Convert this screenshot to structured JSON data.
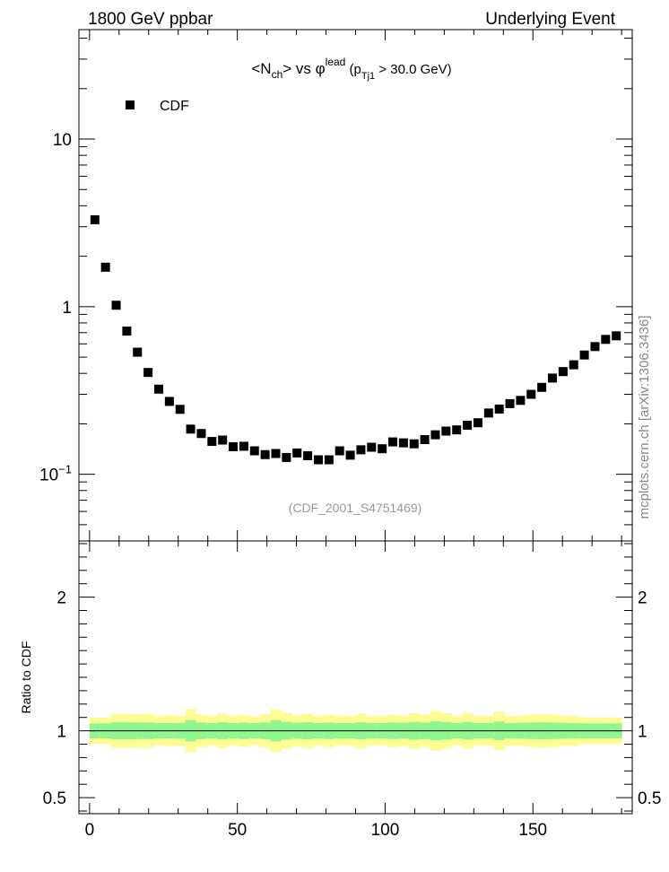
{
  "header": {
    "left": "1800 GeV ppbar",
    "right": "Underlying Event"
  },
  "title": {
    "lt": "<N",
    "sub_ch": "ch",
    "gt": "> vs φ",
    "sup_lead": "lead",
    "paren_open": " (p",
    "sub_tj1": "Tj1",
    "tail": " > 30.0 GeV)"
  },
  "legend": {
    "label": "CDF"
  },
  "analysis_label": "(CDF_2001_S4751469)",
  "side_label": "mcplots.cern.ch [arXiv:1306.3436]",
  "ratio_ylabel": "Ratio to CDF",
  "colors": {
    "band_inner": "#90f690",
    "band_outer": "#fdfd94",
    "marker": "#000000",
    "axis": "#000000"
  },
  "chart_data": [
    {
      "type": "scatter",
      "yscale": "log",
      "xlim": [
        -3.6,
        183.6
      ],
      "ylim": [
        0.04,
        45
      ],
      "y_tick_labels": [
        "10^-1",
        "1",
        "10"
      ],
      "series": [
        {
          "name": "CDF",
          "x": [
            1.8,
            5.4,
            9.0,
            12.6,
            16.2,
            19.8,
            23.4,
            27.0,
            30.6,
            34.2,
            37.8,
            41.4,
            45.0,
            48.6,
            52.2,
            55.8,
            59.4,
            63.0,
            66.6,
            70.2,
            73.8,
            77.4,
            81.0,
            84.6,
            88.2,
            91.8,
            95.4,
            99.0,
            102.6,
            106.2,
            109.8,
            113.4,
            117.0,
            120.6,
            124.2,
            127.8,
            131.4,
            135.0,
            138.6,
            142.2,
            145.8,
            149.4,
            153.0,
            156.6,
            160.2,
            163.8,
            167.4,
            171.0,
            174.6,
            178.2
          ],
          "y": [
            3.3,
            1.72,
            1.02,
            0.715,
            0.535,
            0.405,
            0.322,
            0.272,
            0.244,
            0.186,
            0.175,
            0.157,
            0.16,
            0.146,
            0.147,
            0.138,
            0.131,
            0.133,
            0.126,
            0.134,
            0.129,
            0.122,
            0.122,
            0.138,
            0.13,
            0.14,
            0.145,
            0.142,
            0.156,
            0.154,
            0.152,
            0.161,
            0.172,
            0.181,
            0.184,
            0.196,
            0.203,
            0.232,
            0.245,
            0.264,
            0.276,
            0.3,
            0.33,
            0.375,
            0.41,
            0.45,
            0.515,
            0.578,
            0.638,
            0.67
          ]
        }
      ]
    },
    {
      "type": "area",
      "ylabel": "Ratio to CDF",
      "xlim": [
        -3.6,
        183.6
      ],
      "ylim": [
        0.38,
        2.42
      ],
      "x_tick_labels": [
        "0",
        "50",
        "100",
        "150"
      ],
      "y_tick_labels": [
        "0.5",
        "1",
        "2"
      ],
      "bin_edges": [
        0.0,
        3.6,
        7.2,
        10.8,
        14.4,
        18.0,
        21.6,
        25.2,
        28.8,
        32.4,
        36.0,
        39.6,
        43.2,
        46.8,
        50.4,
        54.0,
        57.6,
        61.2,
        64.8,
        68.4,
        72.0,
        75.6,
        79.2,
        82.8,
        86.4,
        90.0,
        93.6,
        97.2,
        100.8,
        104.4,
        108.0,
        111.6,
        115.2,
        118.8,
        122.4,
        126.0,
        129.6,
        133.2,
        136.8,
        140.4,
        144.0,
        147.6,
        151.2,
        154.8,
        158.4,
        162.0,
        165.6,
        169.2,
        172.8,
        176.4,
        180.0
      ],
      "series": [
        {
          "values": [
            1.0,
            1.0,
            1.0,
            1.0,
            1.0,
            1.0,
            1.0,
            1.0,
            1.0,
            1.0,
            1.0,
            1.0,
            1.0,
            1.0,
            1.0,
            1.0,
            1.0,
            1.0,
            1.0,
            1.0,
            1.0,
            1.0,
            1.0,
            1.0,
            1.0,
            1.0,
            1.0,
            1.0,
            1.0,
            1.0,
            1.0,
            1.0,
            1.0,
            1.0,
            1.0,
            1.0,
            1.0,
            1.0,
            1.0,
            1.0,
            1.0,
            1.0,
            1.0,
            1.0,
            1.0,
            1.0,
            1.0,
            1.0,
            1.0,
            1.0
          ],
          "inner_half_width": [
            0.056,
            0.056,
            0.064,
            0.064,
            0.062,
            0.062,
            0.058,
            0.058,
            0.06,
            0.08,
            0.062,
            0.058,
            0.064,
            0.058,
            0.062,
            0.058,
            0.062,
            0.08,
            0.066,
            0.06,
            0.064,
            0.058,
            0.062,
            0.058,
            0.058,
            0.064,
            0.058,
            0.058,
            0.062,
            0.06,
            0.066,
            0.062,
            0.072,
            0.066,
            0.058,
            0.066,
            0.058,
            0.058,
            0.07,
            0.058,
            0.06,
            0.062,
            0.064,
            0.062,
            0.06,
            0.058,
            0.056,
            0.056,
            0.056,
            0.056
          ],
          "outer_half_width": [
            0.098,
            0.098,
            0.128,
            0.128,
            0.124,
            0.128,
            0.11,
            0.118,
            0.112,
            0.16,
            0.122,
            0.11,
            0.13,
            0.11,
            0.12,
            0.108,
            0.124,
            0.158,
            0.134,
            0.118,
            0.128,
            0.11,
            0.122,
            0.11,
            0.11,
            0.13,
            0.11,
            0.11,
            0.122,
            0.114,
            0.132,
            0.122,
            0.148,
            0.132,
            0.108,
            0.134,
            0.11,
            0.11,
            0.144,
            0.11,
            0.114,
            0.122,
            0.126,
            0.122,
            0.114,
            0.11,
            0.1,
            0.1,
            0.1,
            0.1
          ]
        }
      ]
    }
  ]
}
